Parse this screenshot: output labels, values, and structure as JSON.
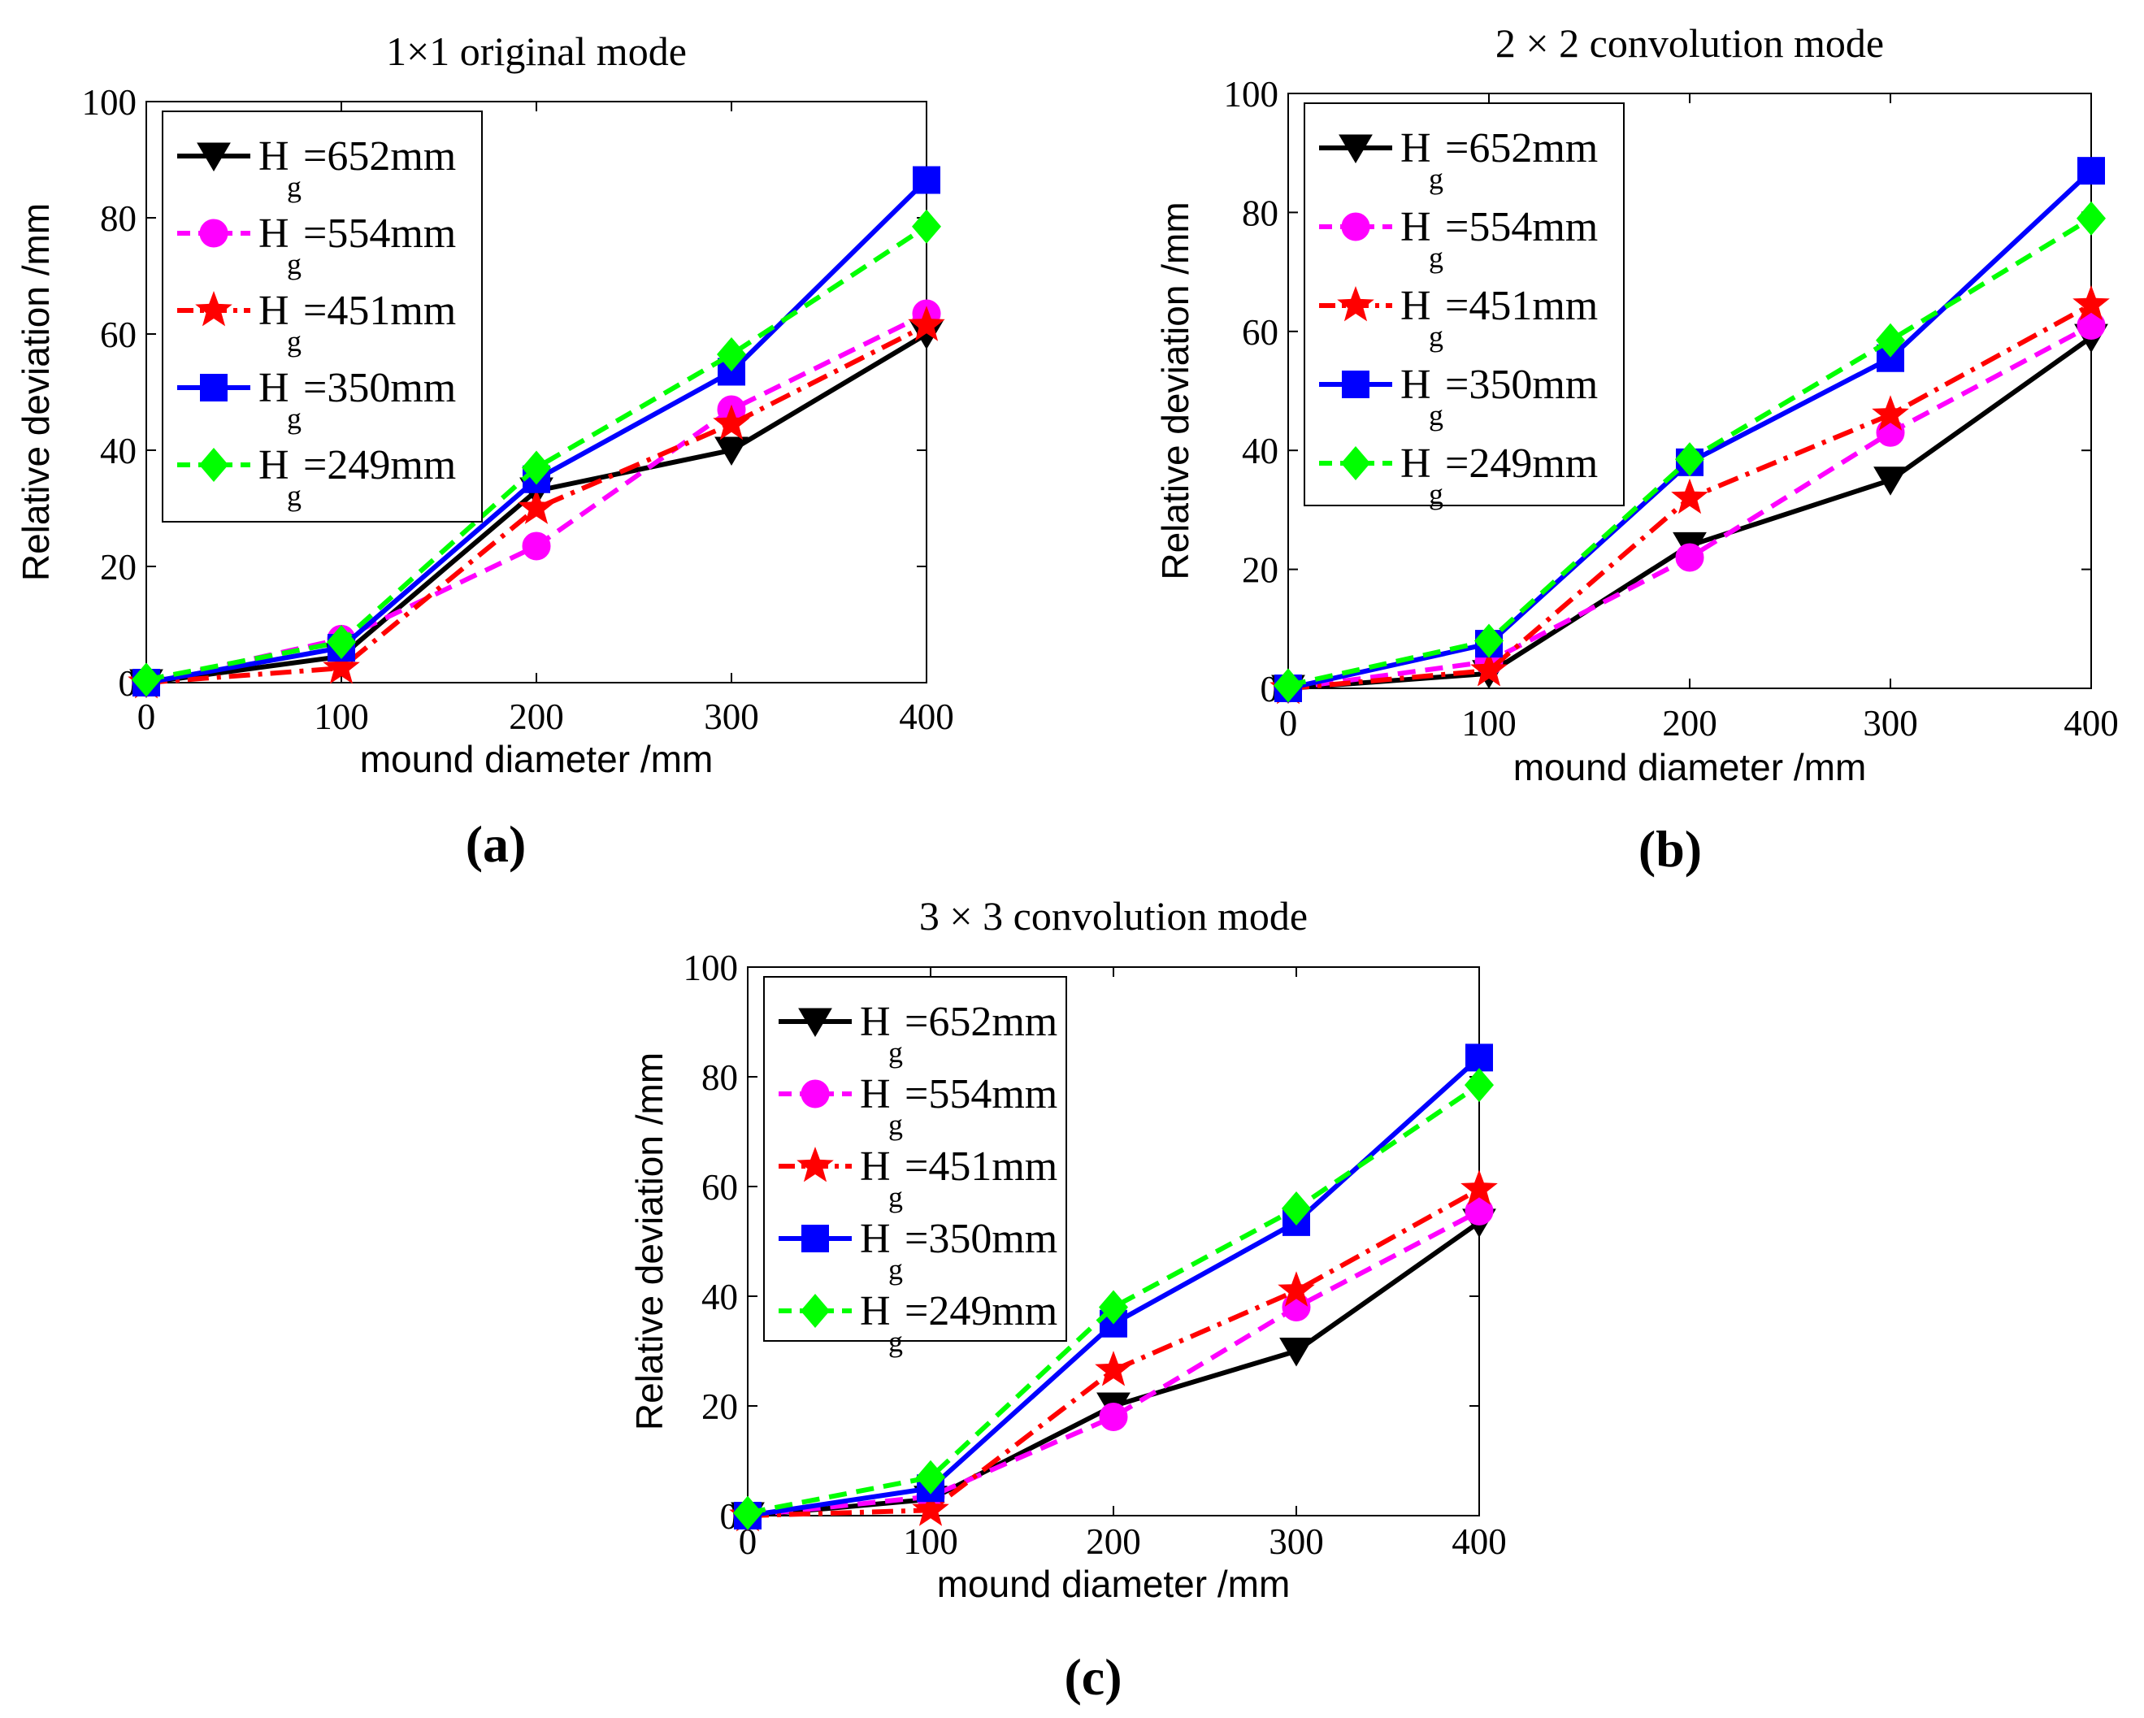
{
  "chart_data": [
    {
      "type": "line",
      "panel": "a",
      "title": "1×1 original mode",
      "caption": "a",
      "xlabel": "mound diameter /mm",
      "ylabel": "Relative deviation /mm",
      "x": [
        0,
        100,
        200,
        300,
        400
      ],
      "xticks": [
        "0",
        "100",
        "200",
        "300",
        "400"
      ],
      "yticks": [
        "0",
        "20",
        "40",
        "60",
        "80",
        "100"
      ],
      "xlim": [
        0,
        400
      ],
      "ylim": [
        0,
        100
      ],
      "legend_position": "top-left",
      "series": [
        {
          "name": "H",
          "sub": "g",
          "value_text": "=652mm",
          "color": "#000000",
          "dash": "solid",
          "marker": "triangle-down",
          "values": [
            0,
            4.5,
            33,
            40,
            60
          ]
        },
        {
          "name": "H",
          "sub": "g",
          "value_text": "=554mm",
          "color": "#ff00ff",
          "dash": "dashed",
          "marker": "circle",
          "values": [
            0,
            7.5,
            23.5,
            47,
            63.5
          ]
        },
        {
          "name": "H",
          "sub": "g",
          "value_text": "=451mm",
          "color": "#ff0000",
          "dash": "dashdot",
          "marker": "star",
          "values": [
            0,
            2.5,
            30,
            44.5,
            61.5
          ]
        },
        {
          "name": "H",
          "sub": "g",
          "value_text": "=350mm",
          "color": "#0000ff",
          "dash": "solid",
          "marker": "square",
          "values": [
            0,
            6,
            35,
            53.5,
            86.5
          ]
        },
        {
          "name": "H",
          "sub": "g",
          "value_text": "=249mm",
          "color": "#00ff00",
          "dash": "dashed",
          "marker": "diamond",
          "values": [
            0.5,
            7,
            37,
            56.5,
            78.5
          ]
        }
      ]
    },
    {
      "type": "line",
      "panel": "b",
      "title": "2 × 2 convolution mode",
      "caption": "b",
      "xlabel": "mound diameter /mm",
      "ylabel": "Relative deviation /mm",
      "x": [
        0,
        100,
        200,
        300,
        400
      ],
      "xticks": [
        "0",
        "100",
        "200",
        "300",
        "400"
      ],
      "yticks": [
        "0",
        "20",
        "40",
        "60",
        "80",
        "100"
      ],
      "xlim": [
        0,
        400
      ],
      "ylim": [
        0,
        100
      ],
      "legend_position": "top-left",
      "series": [
        {
          "name": "H",
          "sub": "g",
          "value_text": "=652mm",
          "color": "#000000",
          "dash": "solid",
          "marker": "triangle-down",
          "values": [
            0,
            2.5,
            24,
            35,
            59
          ]
        },
        {
          "name": "H",
          "sub": "g",
          "value_text": "=554mm",
          "color": "#ff00ff",
          "dash": "dashed",
          "marker": "circle",
          "values": [
            0,
            4.5,
            22,
            43,
            61
          ]
        },
        {
          "name": "H",
          "sub": "g",
          "value_text": "=451mm",
          "color": "#ff0000",
          "dash": "dashdot",
          "marker": "star",
          "values": [
            0,
            3,
            32,
            46,
            64.5
          ]
        },
        {
          "name": "H",
          "sub": "g",
          "value_text": "=350mm",
          "color": "#0000ff",
          "dash": "solid",
          "marker": "square",
          "values": [
            0,
            7.5,
            38,
            55.5,
            87
          ]
        },
        {
          "name": "H",
          "sub": "g",
          "value_text": "=249mm",
          "color": "#00ff00",
          "dash": "dashed",
          "marker": "diamond",
          "values": [
            0.5,
            8,
            38.5,
            58.5,
            79
          ]
        }
      ]
    },
    {
      "type": "line",
      "panel": "c",
      "title": "3 × 3 convolution mode",
      "caption": "c",
      "xlabel": "mound diameter /mm",
      "ylabel": "Relative deviation /mm",
      "x": [
        0,
        100,
        200,
        300,
        400
      ],
      "xticks": [
        "0",
        "100",
        "200",
        "300",
        "400"
      ],
      "yticks": [
        "0",
        "20",
        "40",
        "60",
        "80",
        "100"
      ],
      "xlim": [
        0,
        400
      ],
      "ylim": [
        0,
        100
      ],
      "legend_position": "top-left",
      "series": [
        {
          "name": "H",
          "sub": "g",
          "value_text": "=652mm",
          "color": "#000000",
          "dash": "solid",
          "marker": "triangle-down",
          "values": [
            0,
            3,
            20,
            30,
            53.5
          ]
        },
        {
          "name": "H",
          "sub": "g",
          "value_text": "=554mm",
          "color": "#ff00ff",
          "dash": "dashed",
          "marker": "circle",
          "values": [
            0,
            3.5,
            18,
            38,
            55.5
          ]
        },
        {
          "name": "H",
          "sub": "g",
          "value_text": "=451mm",
          "color": "#ff0000",
          "dash": "dashdot",
          "marker": "star",
          "values": [
            0,
            1,
            26.5,
            41,
            59.5
          ]
        },
        {
          "name": "H",
          "sub": "g",
          "value_text": "=350mm",
          "color": "#0000ff",
          "dash": "solid",
          "marker": "square",
          "values": [
            0,
            5,
            35,
            53.5,
            83.5
          ]
        },
        {
          "name": "H",
          "sub": "g",
          "value_text": "=249mm",
          "color": "#00ff00",
          "dash": "dashed",
          "marker": "diamond",
          "values": [
            0.5,
            7,
            38,
            56,
            78.5
          ]
        }
      ]
    }
  ]
}
